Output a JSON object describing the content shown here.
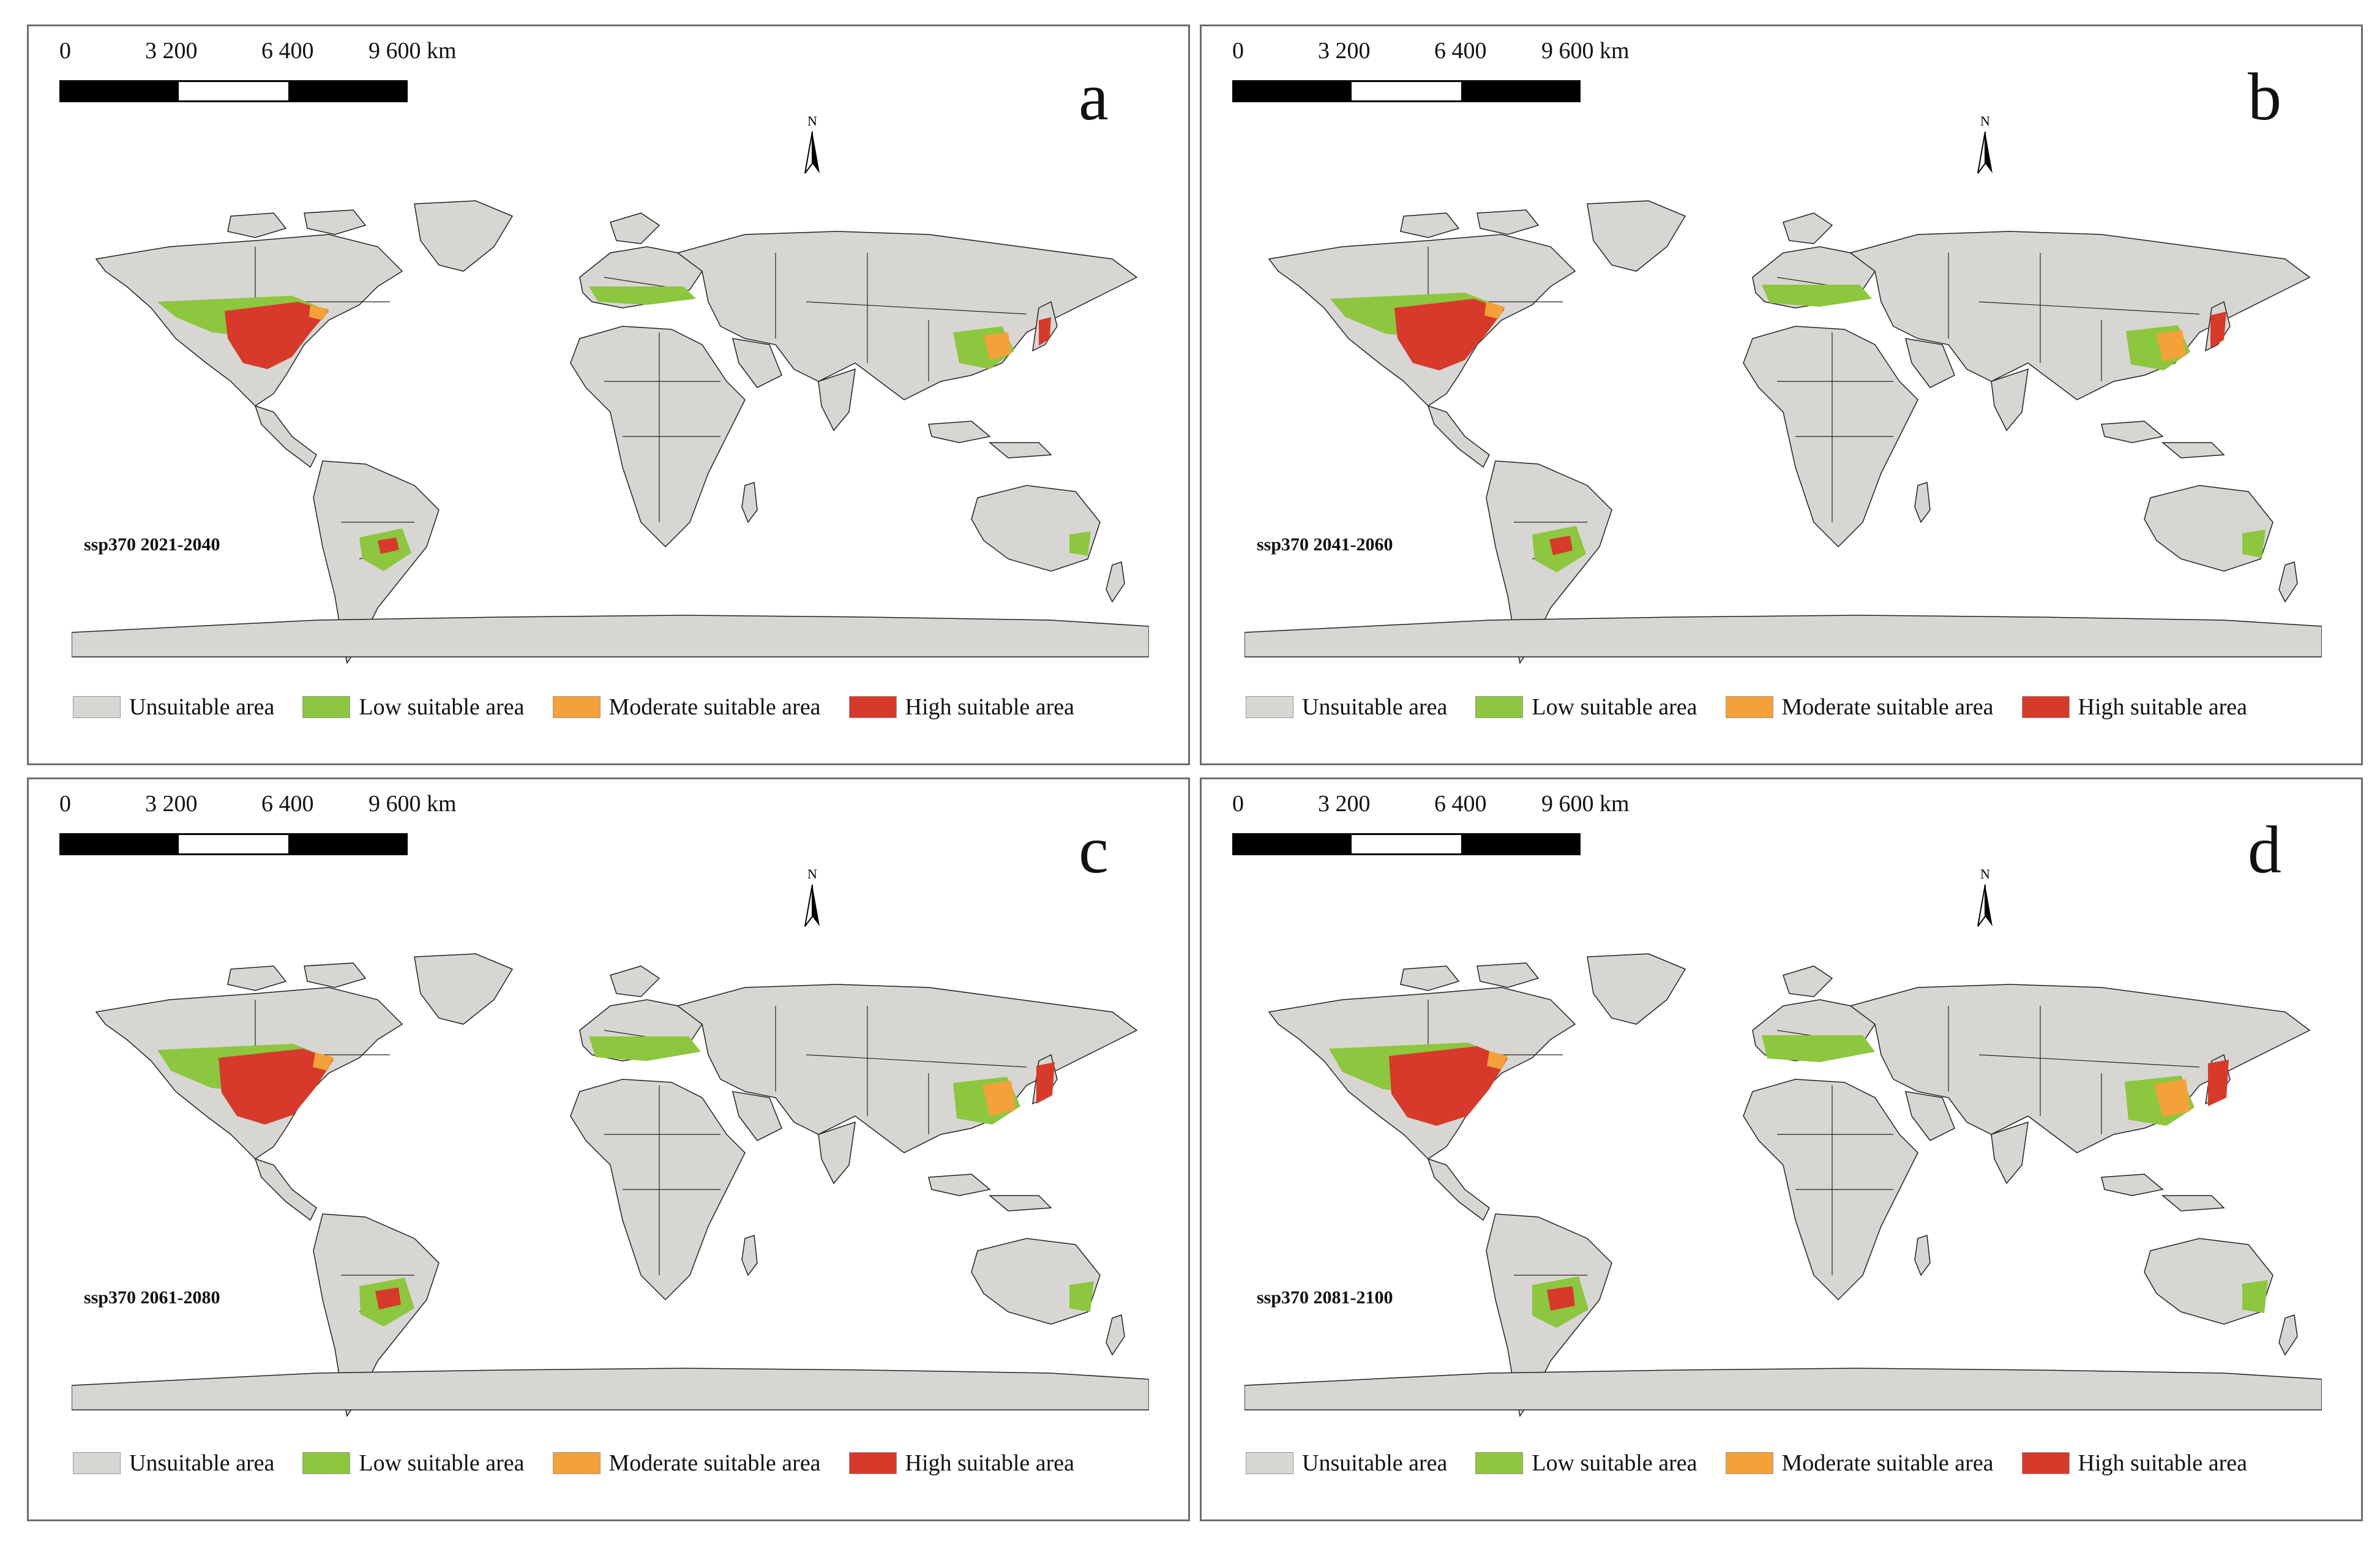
{
  "scale_bar": {
    "ticks": [
      "0",
      "3 200",
      "6 400",
      "9 600 km"
    ]
  },
  "legend": {
    "items": [
      {
        "label": "Unsuitable area",
        "color": "#d8d6d3"
      },
      {
        "label": "Low suitable area",
        "color": "#8dc63f"
      },
      {
        "label": "Moderate suitable area",
        "color": "#f4a13a"
      },
      {
        "label": "High suitable area",
        "color": "#d73a2a"
      }
    ]
  },
  "north_arrow": {
    "label": "N"
  },
  "colors": {
    "land": "#d8d6d3",
    "border": "#222222",
    "low": "#8dc63f",
    "moderate": "#f4a13a",
    "high": "#d73a2a"
  },
  "panels": [
    {
      "letter": "a",
      "period": "ssp370 2021-2040"
    },
    {
      "letter": "b",
      "period": "ssp370 2041-2060"
    },
    {
      "letter": "c",
      "period": "ssp370 2061-2080"
    },
    {
      "letter": "d",
      "period": "ssp370 2081-2100"
    }
  ]
}
